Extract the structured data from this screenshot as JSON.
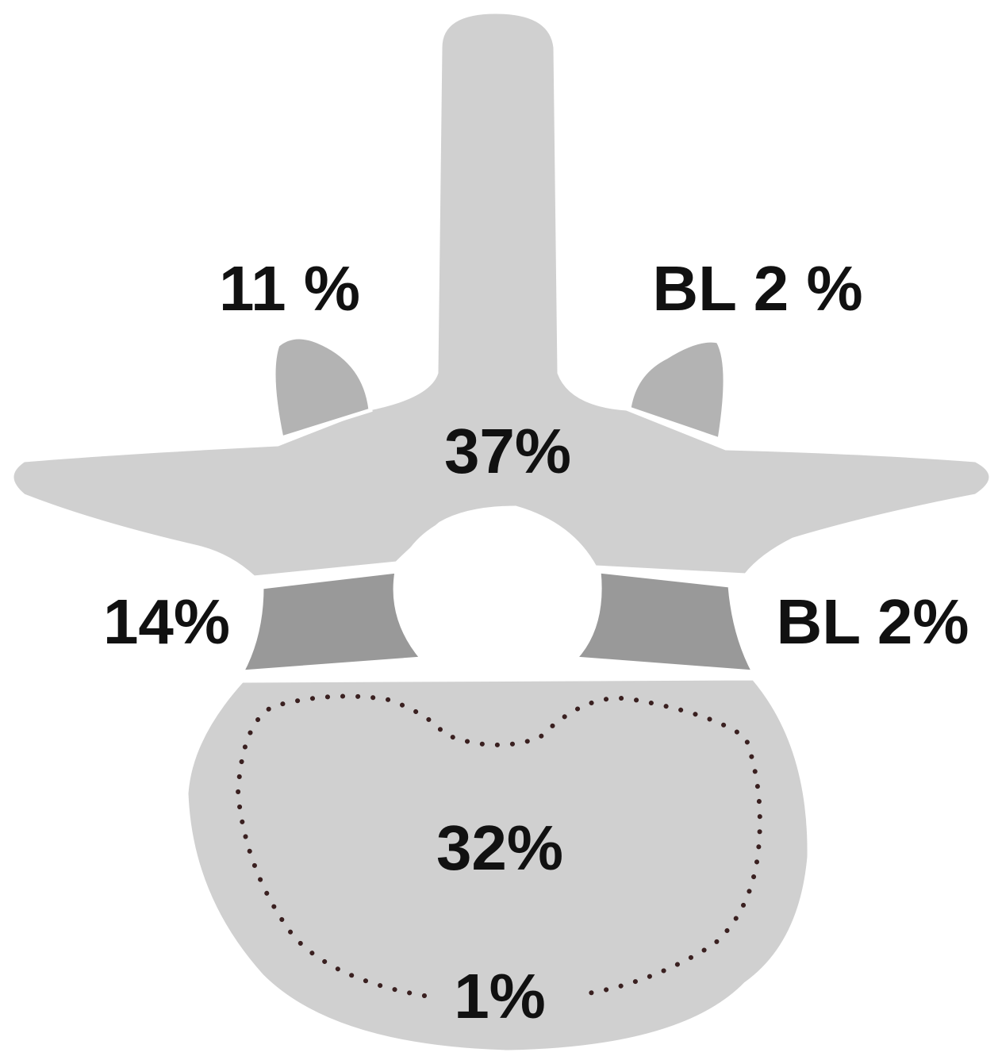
{
  "regions": [
    {
      "label": "11 %"
    },
    {
      "label": "BL 2 %"
    },
    {
      "label": "37%"
    },
    {
      "label": "14%"
    },
    {
      "label": "BL 2%"
    },
    {
      "label": "32%"
    },
    {
      "label": "1%"
    }
  ]
}
